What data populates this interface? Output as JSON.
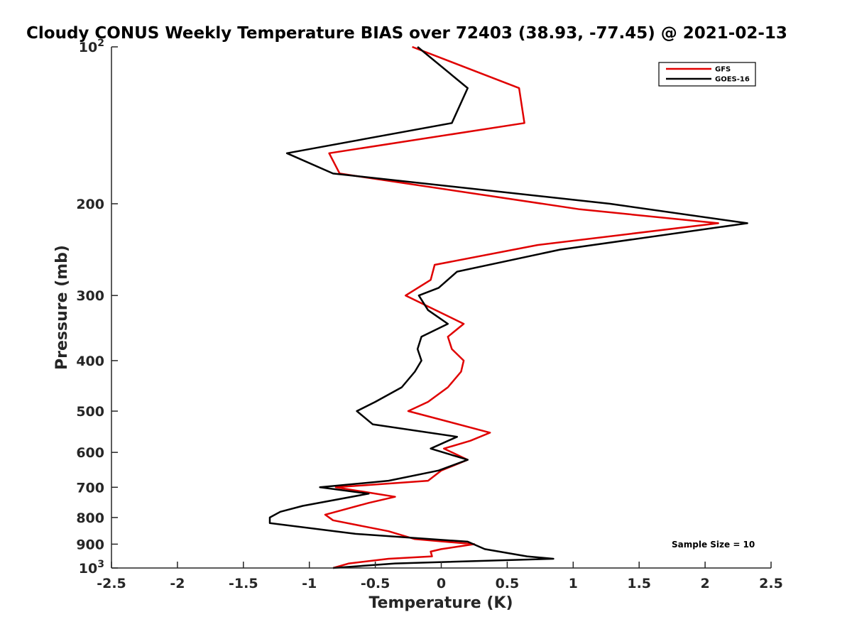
{
  "chart_data": {
    "type": "line",
    "title": "Cloudy CONUS Weekly Temperature BIAS over 72403 (38.93, -77.45) @ 2021-02-13",
    "xlabel": "Temperature (K)",
    "ylabel": "Pressure (mb)",
    "xlim": [
      -2.5,
      2.5
    ],
    "ylim": [
      100,
      1000
    ],
    "y_scale": "log",
    "y_reversed": true,
    "grid": false,
    "legend_position": "top-right",
    "x_ticks": [
      -2.5,
      -2,
      -1.5,
      -1,
      -0.5,
      0,
      0.5,
      1,
      1.5,
      2,
      2.5
    ],
    "x_tick_labels": [
      "-2.5",
      "-2",
      "-1.5",
      "-1",
      "-0.5",
      "0",
      "0.5",
      "1",
      "1.5",
      "2",
      "2.5"
    ],
    "y_ticks": [
      {
        "value": 100,
        "base": "10",
        "exp": "2"
      },
      {
        "value": 200,
        "base": "200",
        "exp": ""
      },
      {
        "value": 300,
        "base": "300",
        "exp": ""
      },
      {
        "value": 400,
        "base": "400",
        "exp": ""
      },
      {
        "value": 500,
        "base": "500",
        "exp": ""
      },
      {
        "value": 600,
        "base": "600",
        "exp": ""
      },
      {
        "value": 700,
        "base": "700",
        "exp": ""
      },
      {
        "value": 800,
        "base": "800",
        "exp": ""
      },
      {
        "value": 900,
        "base": "900",
        "exp": ""
      },
      {
        "value": 1000,
        "base": "10",
        "exp": "3"
      }
    ],
    "annotation": "Sample Size = 10",
    "series": [
      {
        "name": "GFS",
        "color": "#e00000",
        "points": [
          [
            -0.22,
            100
          ],
          [
            0.59,
            120
          ],
          [
            0.63,
            140
          ],
          [
            -0.85,
            160
          ],
          [
            -0.77,
            175
          ],
          [
            1.05,
            205
          ],
          [
            2.1,
            218
          ],
          [
            0.73,
            240
          ],
          [
            -0.05,
            262
          ],
          [
            -0.08,
            280
          ],
          [
            -0.27,
            300
          ],
          [
            0.17,
            340
          ],
          [
            0.05,
            360
          ],
          [
            0.08,
            380
          ],
          [
            0.17,
            400
          ],
          [
            0.15,
            420
          ],
          [
            0.05,
            450
          ],
          [
            -0.1,
            480
          ],
          [
            -0.25,
            500
          ],
          [
            0.37,
            550
          ],
          [
            0.22,
            570
          ],
          [
            0.02,
            590
          ],
          [
            0.2,
            620
          ],
          [
            0.0,
            650
          ],
          [
            -0.1,
            680
          ],
          [
            -0.8,
            700
          ],
          [
            -0.35,
            730
          ],
          [
            -0.55,
            750
          ],
          [
            -0.88,
            790
          ],
          [
            -0.82,
            810
          ],
          [
            -0.4,
            850
          ],
          [
            -0.2,
            880
          ],
          [
            0.25,
            900
          ],
          [
            0.0,
            920
          ],
          [
            -0.08,
            930
          ],
          [
            -0.07,
            950
          ],
          [
            -0.4,
            960
          ],
          [
            -0.7,
            980
          ],
          [
            -0.82,
            1000
          ]
        ]
      },
      {
        "name": "GOES-16",
        "color": "#000000",
        "points": [
          [
            -0.18,
            100
          ],
          [
            0.2,
            120
          ],
          [
            0.08,
            140
          ],
          [
            -1.17,
            160
          ],
          [
            -0.82,
            175
          ],
          [
            1.28,
            200
          ],
          [
            2.32,
            218
          ],
          [
            0.9,
            245
          ],
          [
            0.12,
            270
          ],
          [
            -0.02,
            290
          ],
          [
            -0.17,
            300
          ],
          [
            -0.1,
            320
          ],
          [
            0.05,
            340
          ],
          [
            -0.15,
            360
          ],
          [
            -0.18,
            380
          ],
          [
            -0.15,
            400
          ],
          [
            -0.2,
            420
          ],
          [
            -0.3,
            450
          ],
          [
            -0.5,
            480
          ],
          [
            -0.64,
            500
          ],
          [
            -0.52,
            530
          ],
          [
            0.12,
            560
          ],
          [
            -0.08,
            590
          ],
          [
            0.2,
            620
          ],
          [
            -0.02,
            650
          ],
          [
            -0.4,
            680
          ],
          [
            -0.92,
            700
          ],
          [
            -0.55,
            720
          ],
          [
            -1.05,
            760
          ],
          [
            -1.22,
            780
          ],
          [
            -1.3,
            800
          ],
          [
            -1.3,
            820
          ],
          [
            -0.65,
            860
          ],
          [
            0.2,
            890
          ],
          [
            0.33,
            920
          ],
          [
            0.65,
            950
          ],
          [
            0.85,
            960
          ],
          [
            -0.35,
            980
          ],
          [
            -0.82,
            1000
          ]
        ]
      }
    ]
  }
}
